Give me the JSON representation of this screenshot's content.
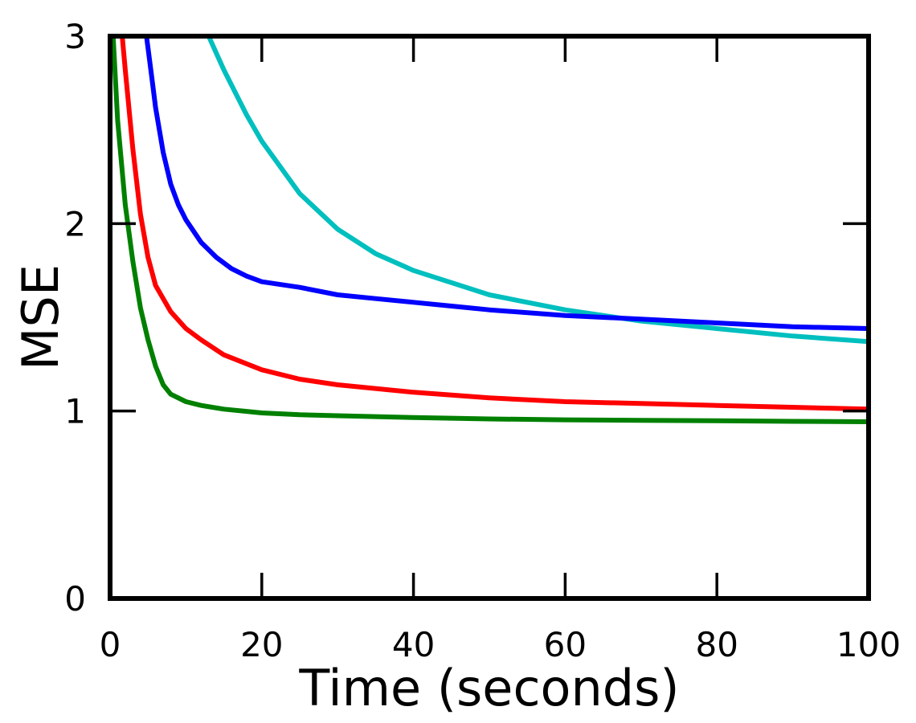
{
  "chart_data": {
    "type": "line",
    "title": "",
    "xlabel": "Time (seconds)",
    "ylabel": "MSE",
    "xlim": [
      0,
      100
    ],
    "ylim": [
      0,
      3
    ],
    "xticks": [
      0,
      20,
      40,
      60,
      80,
      100
    ],
    "yticks": [
      0,
      1,
      2,
      3
    ],
    "grid": false,
    "legend": "none",
    "series": [
      {
        "color": "#00bfbf",
        "x": [
          13,
          15,
          18,
          20,
          25,
          30,
          35,
          40,
          50,
          60,
          70,
          80,
          90,
          100
        ],
        "y": [
          3.0,
          2.82,
          2.58,
          2.44,
          2.16,
          1.97,
          1.84,
          1.75,
          1.62,
          1.54,
          1.48,
          1.44,
          1.4,
          1.37
        ]
      },
      {
        "color": "#0000ff",
        "x": [
          4.8,
          5.5,
          6,
          7,
          8,
          9,
          10,
          12,
          14,
          16,
          18,
          20,
          25,
          30,
          35,
          40,
          45,
          50,
          60,
          70,
          80,
          90,
          100
        ],
        "y": [
          3.0,
          2.78,
          2.62,
          2.38,
          2.21,
          2.1,
          2.02,
          1.9,
          1.82,
          1.76,
          1.72,
          1.69,
          1.66,
          1.62,
          1.6,
          1.58,
          1.56,
          1.54,
          1.51,
          1.49,
          1.47,
          1.45,
          1.44
        ]
      },
      {
        "color": "#ff0000",
        "x": [
          1.6,
          2,
          3,
          4,
          5,
          6,
          7,
          8,
          10,
          12,
          15,
          20,
          25,
          30,
          40,
          50,
          60,
          70,
          80,
          90,
          100
        ],
        "y": [
          3.0,
          2.82,
          2.4,
          2.05,
          1.82,
          1.67,
          1.6,
          1.53,
          1.44,
          1.38,
          1.3,
          1.22,
          1.17,
          1.14,
          1.1,
          1.07,
          1.05,
          1.04,
          1.03,
          1.02,
          1.01
        ]
      },
      {
        "color": "#008000",
        "x": [
          0.4,
          1,
          2,
          3,
          4,
          5,
          6,
          7,
          8,
          10,
          12,
          15,
          20,
          25,
          30,
          40,
          50,
          60,
          70,
          80,
          90,
          100
        ],
        "y": [
          3.0,
          2.55,
          2.1,
          1.8,
          1.55,
          1.38,
          1.24,
          1.14,
          1.09,
          1.05,
          1.03,
          1.01,
          0.99,
          0.98,
          0.975,
          0.965,
          0.958,
          0.953,
          0.95,
          0.948,
          0.945,
          0.943
        ]
      }
    ]
  }
}
